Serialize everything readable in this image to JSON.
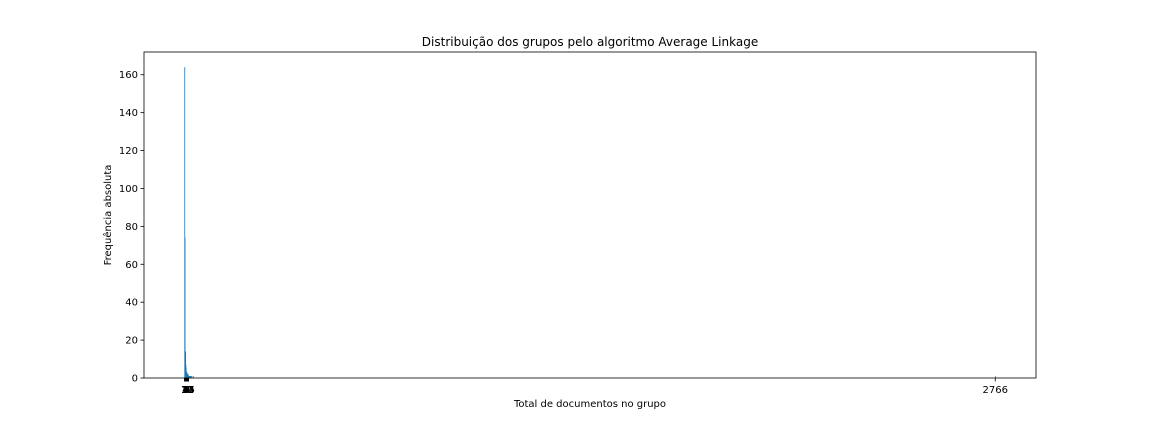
{
  "chart_data": {
    "type": "bar",
    "title": "Distribuição dos grupos pelo algoritmo Average Linkage",
    "xlabel": "Total de documentos no grupo",
    "ylabel": "Frequência absoluta",
    "x": [
      1,
      2,
      3,
      4,
      5,
      6,
      7,
      8,
      9,
      10,
      11,
      12,
      13,
      14,
      15,
      16,
      17,
      18,
      20,
      22,
      25,
      30,
      2766
    ],
    "values": [
      164,
      74,
      14,
      14,
      7,
      5,
      3,
      2,
      3,
      2,
      2,
      1,
      2,
      1,
      1,
      1,
      1,
      1,
      1,
      1,
      1,
      1,
      1
    ],
    "ylim": [
      0,
      172
    ],
    "xlim": [
      -137,
      2905
    ],
    "yticks": [
      0,
      20,
      40,
      60,
      80,
      100,
      120,
      140,
      160
    ],
    "xtick_labels_dense": [
      "1",
      "2",
      "3",
      "4",
      "5",
      "6",
      "7",
      "8",
      "9",
      "10",
      "11",
      "12",
      "13",
      "14",
      "15"
    ],
    "xtick_label_right": "2766",
    "bar_color": "#1f77b4",
    "grid": false,
    "legend": "none"
  }
}
